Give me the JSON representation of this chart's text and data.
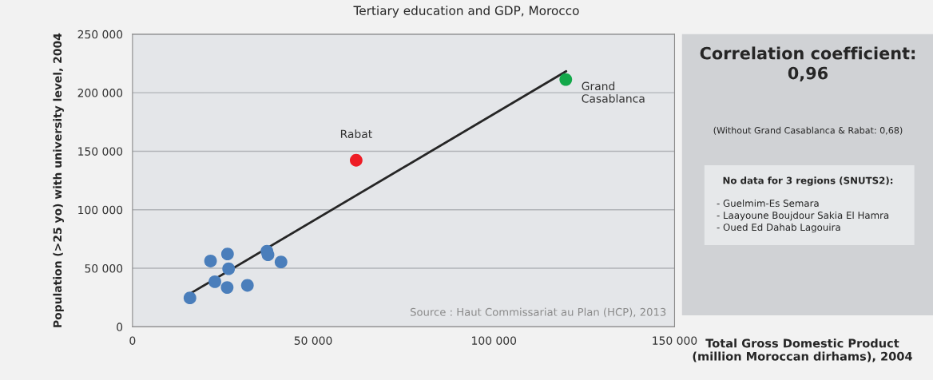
{
  "chart_data": {
    "type": "scatter",
    "title": "Tertiary education and GDP, Morocco",
    "xlabel": "Total Gross Domestic Product\n(million Moroccan dirhams), 2004",
    "ylabel": "Population (>25 yo) with university level, 2004",
    "xlim": [
      0,
      150000
    ],
    "ylim": [
      0,
      250000
    ],
    "xticks": [
      0,
      {
        "value": 50000,
        "label": "50 000"
      },
      {
        "value": 100000,
        "label": "100 000"
      },
      {
        "value": 150000,
        "label": "150 000"
      }
    ],
    "yticks": [
      0,
      {
        "value": 50000,
        "label": "50 000"
      },
      {
        "value": 100000,
        "label": "100 000"
      },
      {
        "value": 150000,
        "label": "150 000"
      },
      {
        "value": 200000,
        "label": "200 000"
      },
      {
        "value": 250000,
        "label": "250 000"
      }
    ],
    "grid": "y",
    "legend": false,
    "marker": "circle",
    "series": [
      {
        "color": "#4a7ebb",
        "x": [
          15900,
          21600,
          26300,
          26600,
          22800,
          26200,
          31800,
          37200,
          37500,
          41100
        ],
        "values": [
          24700,
          56200,
          62200,
          49600,
          38500,
          33600,
          35400,
          64600,
          61500,
          55400
        ]
      },
      {
        "name": "Rabat",
        "color": "#ee1c25",
        "x": [
          61900
        ],
        "values": [
          142300
        ]
      },
      {
        "name": "Grand\nCasablanca",
        "color": "#13a84a",
        "x": [
          119900
        ],
        "values": [
          211300
        ]
      },
      {
        "type": "line",
        "color": "#262626",
        "line_style": "solid",
        "marker": "none",
        "x": [
          15900,
          120000
        ],
        "values": [
          28300,
          218300
        ]
      }
    ],
    "annotations": [
      "Source : Haut Commissariat au Plan (HCP), 2013",
      "Correlation coefficient:\n0,96",
      "(Without Grand Casablanca & Rabat: 0,68)",
      "No data for 3 regions (SNUTS2):",
      "- Guelmim-Es Semara\n- Laayoune Boujdour Sakia El Hamra\n- Oued Ed Dahab Lagouira"
    ]
  }
}
